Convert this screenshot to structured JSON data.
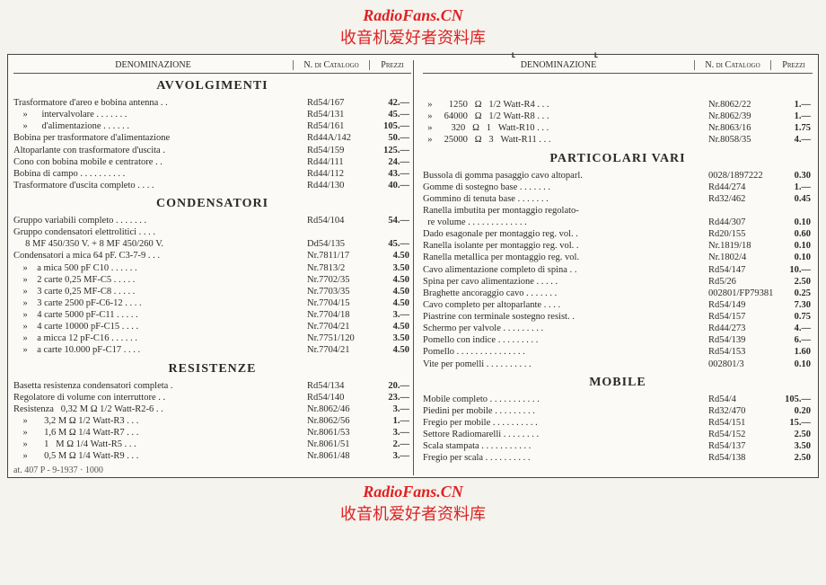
{
  "watermark": {
    "main": "RadioFans.CN",
    "sub": "收音机爱好者资料库"
  },
  "headers": {
    "den": "DENOMINAZIONE",
    "cat": "N. di Catalogo",
    "prz": "Prezzi"
  },
  "left": {
    "sections": [
      {
        "title": "AVVOLGIMENTI",
        "rows": [
          {
            "den": "Trasformatore d'areo e bobina antenna . .",
            "cat": "Rd54/167",
            "prz": "42.—"
          },
          {
            "den": "    »      intervalvolare  . . . . . . .",
            "cat": "Rd54/131",
            "prz": "45.—"
          },
          {
            "den": "    »      d'alimentazione . . . . . .",
            "cat": "Rd54/161",
            "prz": "105.—"
          },
          {
            "den": "Bobina per trasformatore d'alimentazione",
            "cat": "Rd44A/142",
            "prz": "50.—"
          },
          {
            "den": "Altoparlante con trasformatore d'uscita .",
            "cat": "Rd54/159",
            "prz": "125.—"
          },
          {
            "den": "Cono con bobina mobile e centratore  . .",
            "cat": "Rd44/111",
            "prz": "24.—"
          },
          {
            "den": "Bobina di campo  . . . . . . . . . .",
            "cat": "Rd44/112",
            "prz": "43.—"
          },
          {
            "den": "Trasformatore d'uscita completo  . . . .",
            "cat": "Rd44/130",
            "prz": "40.—"
          }
        ]
      },
      {
        "title": "CONDENSATORI",
        "rows": [
          {
            "den": "Gruppo variabili completo  . . . . . . .",
            "cat": "Rd54/104",
            "prz": "54.—"
          },
          {
            "den": "Gruppo condensatori elettrolitici . . . .",
            "cat": "",
            "prz": ""
          },
          {
            "den": "     8 MF 450/350 V. + 8 MF 450/260 V.",
            "cat": "Dd54/135",
            "prz": "45.—"
          },
          {
            "den": "Condensatori a mica 64 pF. C3-7-9  . . .",
            "cat": "Nr.7811/17",
            "prz": "4.50"
          },
          {
            "den": "    »    a mica 500 pF C10 . . . . . .",
            "cat": "Nr.7813/2",
            "prz": "3.50"
          },
          {
            "den": "    »    2 carte 0,25 MF-C5  . . . . .",
            "cat": "Nr.7702/35",
            "prz": "4.50"
          },
          {
            "den": "    »    3 carte 0,25 MF-C8  . . . . .",
            "cat": "Nr.7703/35",
            "prz": "4.50"
          },
          {
            "den": "    »    3 carte 2500 pF-C6-12 . . . .",
            "cat": "Nr.7704/15",
            "prz": "4.50"
          },
          {
            "den": "    »    4 carte 5000 pF-C11 . . . . .",
            "cat": "Nr.7704/18",
            "prz": "3.—"
          },
          {
            "den": "    »    4 carte 10000 pF-C15  . . . .",
            "cat": "Nr.7704/21",
            "prz": "4.50"
          },
          {
            "den": "    »    a micca 12 pF-C16 . . . . . .",
            "cat": "Nr.7751/120",
            "prz": "3.50"
          },
          {
            "den": "    »    a carte 10.000 pF-C17 . . . .",
            "cat": "Nr.7704/21",
            "prz": "4.50"
          }
        ]
      },
      {
        "title": "RESISTENZE",
        "rows": [
          {
            "den": "Basetta resistenza condensatori completa .",
            "cat": "Rd54/134",
            "prz": "20.—"
          },
          {
            "den": "Regolatore di volume con interruttore  . .",
            "cat": "Rd54/140",
            "prz": "23.—"
          },
          {
            "den": "Resistenza   0,32 M Ω 1/2 Watt-R2-6  . .",
            "cat": "Nr.8062/46",
            "prz": "3.—"
          },
          {
            "den": "    »       3,2 M Ω 1/2 Watt-R3  . . .",
            "cat": "Nr.8062/56",
            "prz": "1.—"
          },
          {
            "den": "    »       1,6 M Ω 1/4 Watt-R7  . . .",
            "cat": "Nr.8061/53",
            "prz": "3.—"
          },
          {
            "den": "    »       1   M Ω 1/4 Watt-R5  . . .",
            "cat": "Nr.8061/51",
            "prz": "2.—"
          },
          {
            "den": "    »       0,5 M Ω 1/4 Watt-R9  . . .",
            "cat": "Nr.8061/48",
            "prz": "3.—"
          }
        ]
      }
    ]
  },
  "right": {
    "continuation": [
      {
        "den": "  »       1250   Ω   1/2 Watt-R4  . . .",
        "cat": "Nr.8062/22",
        "prz": "1.—"
      },
      {
        "den": "  »     64000   Ω   1/2 Watt-R8  . . .",
        "cat": "Nr.8062/39",
        "prz": "1.—"
      },
      {
        "den": "  »        320   Ω   1   Watt-R10 . . .",
        "cat": "Nr.8063/16",
        "prz": "1.75"
      },
      {
        "den": "  »     25000   Ω   3   Watt-R11 . . .",
        "cat": "Nr.8058/35",
        "prz": "4.—"
      }
    ],
    "sections": [
      {
        "title": "PARTICOLARI VARI",
        "rows": [
          {
            "den": "Bussola di gomma pasaggio cavo altoparl.",
            "cat": "0028/1897222",
            "prz": "0.30"
          },
          {
            "den": "Gomme di sostegno base  . . . . . . .",
            "cat": "Rd44/274",
            "prz": "1.—"
          },
          {
            "den": "Gommino di tenuta base  . . . . . . .",
            "cat": "Rd32/462",
            "prz": "0.45"
          },
          {
            "den": "Ranella imbutita per montaggio regolato-",
            "cat": "",
            "prz": ""
          },
          {
            "den": "  re volume . . . . . . . . . . . . .",
            "cat": "Rd44/307",
            "prz": "0.10"
          },
          {
            "den": "Dado esagonale per montaggio reg. vol. .",
            "cat": "Rd20/155",
            "prz": "0.60"
          },
          {
            "den": "Ranella isolante per montaggio reg. vol. .",
            "cat": "Nr.1819/18",
            "prz": "0.10"
          },
          {
            "den": "Ranella metallica per montaggio reg. vol.",
            "cat": "Nr.1802/4",
            "prz": "0.10"
          },
          {
            "den": "Cavo alimentazione completo di spina . .",
            "cat": "Rd54/147",
            "prz": "10.—"
          },
          {
            "den": "Spina per cavo alimentazione  . . . . .",
            "cat": "Rd5/26",
            "prz": "2.50"
          },
          {
            "den": "Braghette ancoraggio cavo . . . . . . .",
            "cat": "002801/FP79381",
            "prz": "0.25"
          },
          {
            "den": "Cavo completo per altoparlante  . . . .",
            "cat": "Rd54/149",
            "prz": "7.30"
          },
          {
            "den": "Piastrine con terminale sostegno resist. .",
            "cat": "Rd54/157",
            "prz": "0.75"
          },
          {
            "den": "Schermo per valvole . . . . . . . . .",
            "cat": "Rd44/273",
            "prz": "4.—"
          },
          {
            "den": "Pomello con indice  . . . . . . . . .",
            "cat": "Rd54/139",
            "prz": "6.—"
          },
          {
            "den": "Pomello . . . . . . . . . . . . . . .",
            "cat": "Rd54/153",
            "prz": "1.60"
          },
          {
            "den": "Vite per pomelli  . . . . . . . . . .",
            "cat": "002801/3",
            "prz": "0.10"
          }
        ]
      },
      {
        "title": "MOBILE",
        "rows": [
          {
            "den": "Mobile completo . . . . . . . . . . .",
            "cat": "Rd54/4",
            "prz": "105.—"
          },
          {
            "den": "Piedini per mobile  . . . . . . . . .",
            "cat": "Rd32/470",
            "prz": "0.20"
          },
          {
            "den": "Fregio per mobile . . . . . . . . . .",
            "cat": "Rd54/151",
            "prz": "15.—"
          },
          {
            "den": "Settore Radiomarelli  . . . . . . . .",
            "cat": "Rd54/152",
            "prz": "2.50"
          },
          {
            "den": "Scala stampata  . . . . . . . . . . .",
            "cat": "Rd54/137",
            "prz": "3.50"
          },
          {
            "den": "Fregio per scala  . . . . . . . . . .",
            "cat": "Rd54/138",
            "prz": "2.50"
          }
        ]
      }
    ]
  },
  "footnote": "at. 407 P - 9-1937 · 1000",
  "styling": {
    "body_bg": "#f5f3ee",
    "page_bg": "#fbfaf6",
    "text_color": "#2a2a2a",
    "watermark_color": "#d22",
    "border_color": "#444",
    "fontsizes": {
      "row": 10.5,
      "header": 10,
      "section": 14,
      "watermark": 18
    }
  }
}
